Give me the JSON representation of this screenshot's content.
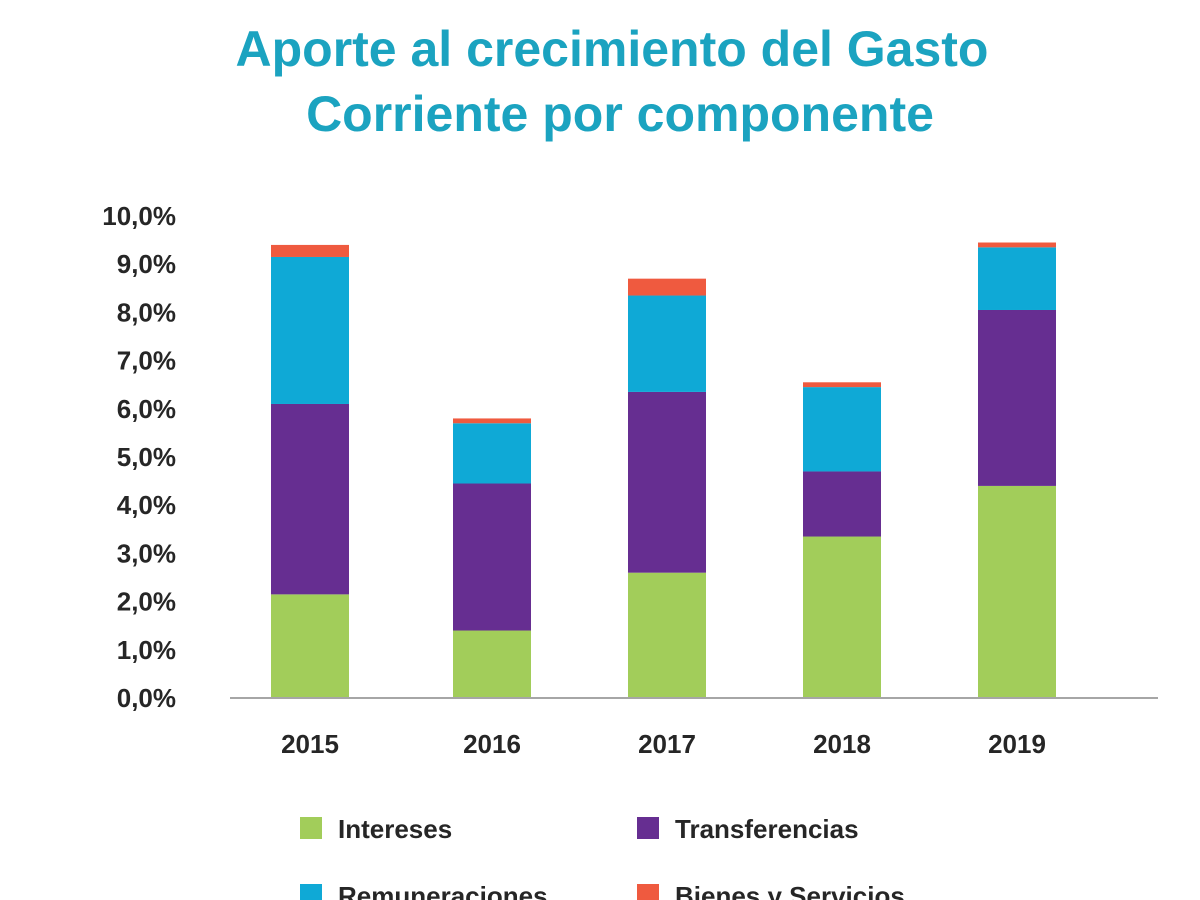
{
  "colors": {
    "title": "#1ba3c0",
    "axis": "#a6a6a6",
    "text": "#262626"
  },
  "chart_data": {
    "type": "bar",
    "stacked": true,
    "title": "Aporte al crecimiento del Gasto Corriente por componente",
    "title_lines": [
      "Aporte al crecimiento del Gasto",
      "Corriente por componente"
    ],
    "categories": [
      "2015",
      "2016",
      "2017",
      "2018",
      "2019"
    ],
    "ylim": [
      0,
      10
    ],
    "yticks": [
      0,
      1,
      2,
      3,
      4,
      5,
      6,
      7,
      8,
      9,
      10
    ],
    "ytick_labels": [
      "0,0%",
      "1,0%",
      "2,0%",
      "3,0%",
      "4,0%",
      "5,0%",
      "6,0%",
      "7,0%",
      "8,0%",
      "9,0%",
      "10,0%"
    ],
    "grid": false,
    "legend_position": "bottom",
    "series": [
      {
        "name": "Intereses",
        "color": "#a2cd5a",
        "values": [
          2.15,
          1.4,
          2.6,
          3.35,
          4.4
        ]
      },
      {
        "name": "Transferencias",
        "color": "#662e91",
        "values": [
          3.95,
          3.05,
          3.75,
          1.35,
          3.65
        ]
      },
      {
        "name": "Remuneraciones",
        "color": "#0fa9d6",
        "values": [
          3.05,
          1.25,
          2.0,
          1.75,
          1.3
        ]
      },
      {
        "name": "Bienes y Servicios",
        "color": "#ef5a3f",
        "values": [
          0.25,
          0.1,
          0.35,
          0.1,
          0.1
        ]
      }
    ]
  }
}
